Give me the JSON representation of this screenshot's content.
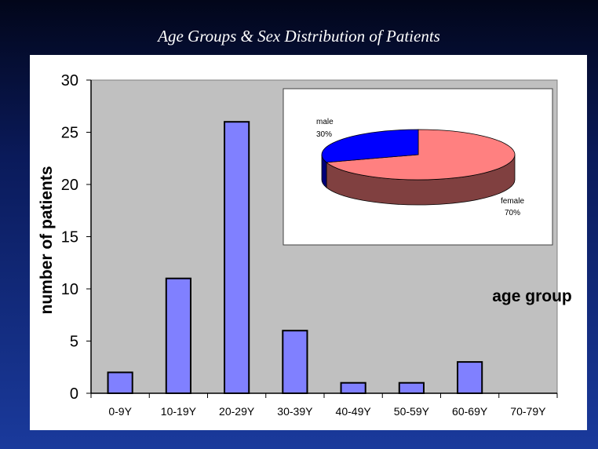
{
  "chart_data": {
    "type": "bar",
    "title": "Age Groups & Sex Distribution of Patients",
    "xlabel": "age group",
    "ylabel": "number of patients",
    "ylim": [
      0,
      30
    ],
    "yticks": [
      "0",
      "5",
      "10",
      "15",
      "20",
      "25",
      "30"
    ],
    "categories": [
      "0-9Y",
      "10-19Y",
      "20-29Y",
      "30-39Y",
      "40-49Y",
      "50-59Y",
      "60-69Y",
      "70-79Y"
    ],
    "values": [
      2,
      11,
      26,
      6,
      1,
      1,
      3,
      0
    ],
    "bar_color": "#8080ff",
    "plot_bg": "#c0c0c0",
    "inset": {
      "type": "pie",
      "slices": [
        {
          "name": "male",
          "value": 30,
          "label": "30%",
          "color": "#0000ff",
          "side": "#00007a"
        },
        {
          "name": "female",
          "value": 70,
          "label": "70%",
          "color": "#ff8080",
          "side": "#804040"
        }
      ]
    }
  }
}
